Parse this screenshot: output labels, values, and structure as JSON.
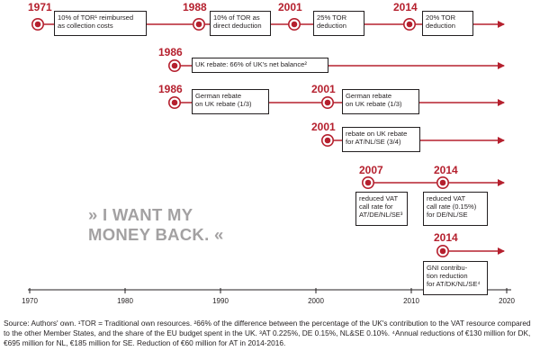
{
  "years": {
    "r1_1971": "1971",
    "r1_1988": "1988",
    "r1_2001": "2001",
    "r1_2014": "2014",
    "r2_1986": "1986",
    "r3_1986": "1986",
    "r3_2001": "2001",
    "r4_2001": "2001",
    "r5_2007": "2007",
    "r5_2014": "2014",
    "r6_2014": "2014"
  },
  "boxes": {
    "tor_collection": [
      "10% of TOR¹ reimbursed",
      "as collection costs"
    ],
    "tor_direct": [
      "10% of TOR as",
      "direct deduction"
    ],
    "tor_25": [
      "25% TOR",
      "deduction"
    ],
    "tor_20": [
      "20% TOR",
      "deduction"
    ],
    "uk_rebate": [
      "UK rebate: 66% of UK's net balance²"
    ],
    "german_1_3_a": [
      "German rebate",
      "on UK rebate (1/3)"
    ],
    "german_1_3_b": [
      "German rebate",
      "on UK rebate (1/3)"
    ],
    "rebate_3_4": [
      "rebate on UK rebate",
      "for AT/NL/SE (3/4)"
    ],
    "vat_2007": [
      "reduced VAT",
      "call rate for",
      "AT/DE/NL/SE³"
    ],
    "vat_2014": [
      "reduced VAT",
      "call rate (0.15%)",
      "for DE/NL/SE"
    ],
    "gni_2014": [
      "GNI contribu-",
      "tion reduction",
      "for AT/DK/NL/SE⁴"
    ]
  },
  "axis": {
    "ticks": [
      "1970",
      "1980",
      "1990",
      "2000",
      "2010",
      "2020"
    ]
  },
  "slogan": {
    "line1": "» I WANT MY",
    "line2": "MONEY BACK. «"
  },
  "caption": {
    "text": "Source: Authors' own. ¹TOR = Traditional own resources. ²66% of the difference between the percentage of the UK's contribution to the VAT resource compared to the other Member States, and the share of the EU budget spent in the UK. ³AT 0.225%, DE 0.15%, NL&SE 0.10%. ⁴Annual reductions of €130 million for DK, €695 million for NL, €185 million for SE. Reduction of €60 million for AT in 2014-2016."
  },
  "colors": {
    "accent": "#b5202e",
    "text": "#231f20",
    "slogan": "#a3a1a2",
    "axis": "#231f20"
  }
}
